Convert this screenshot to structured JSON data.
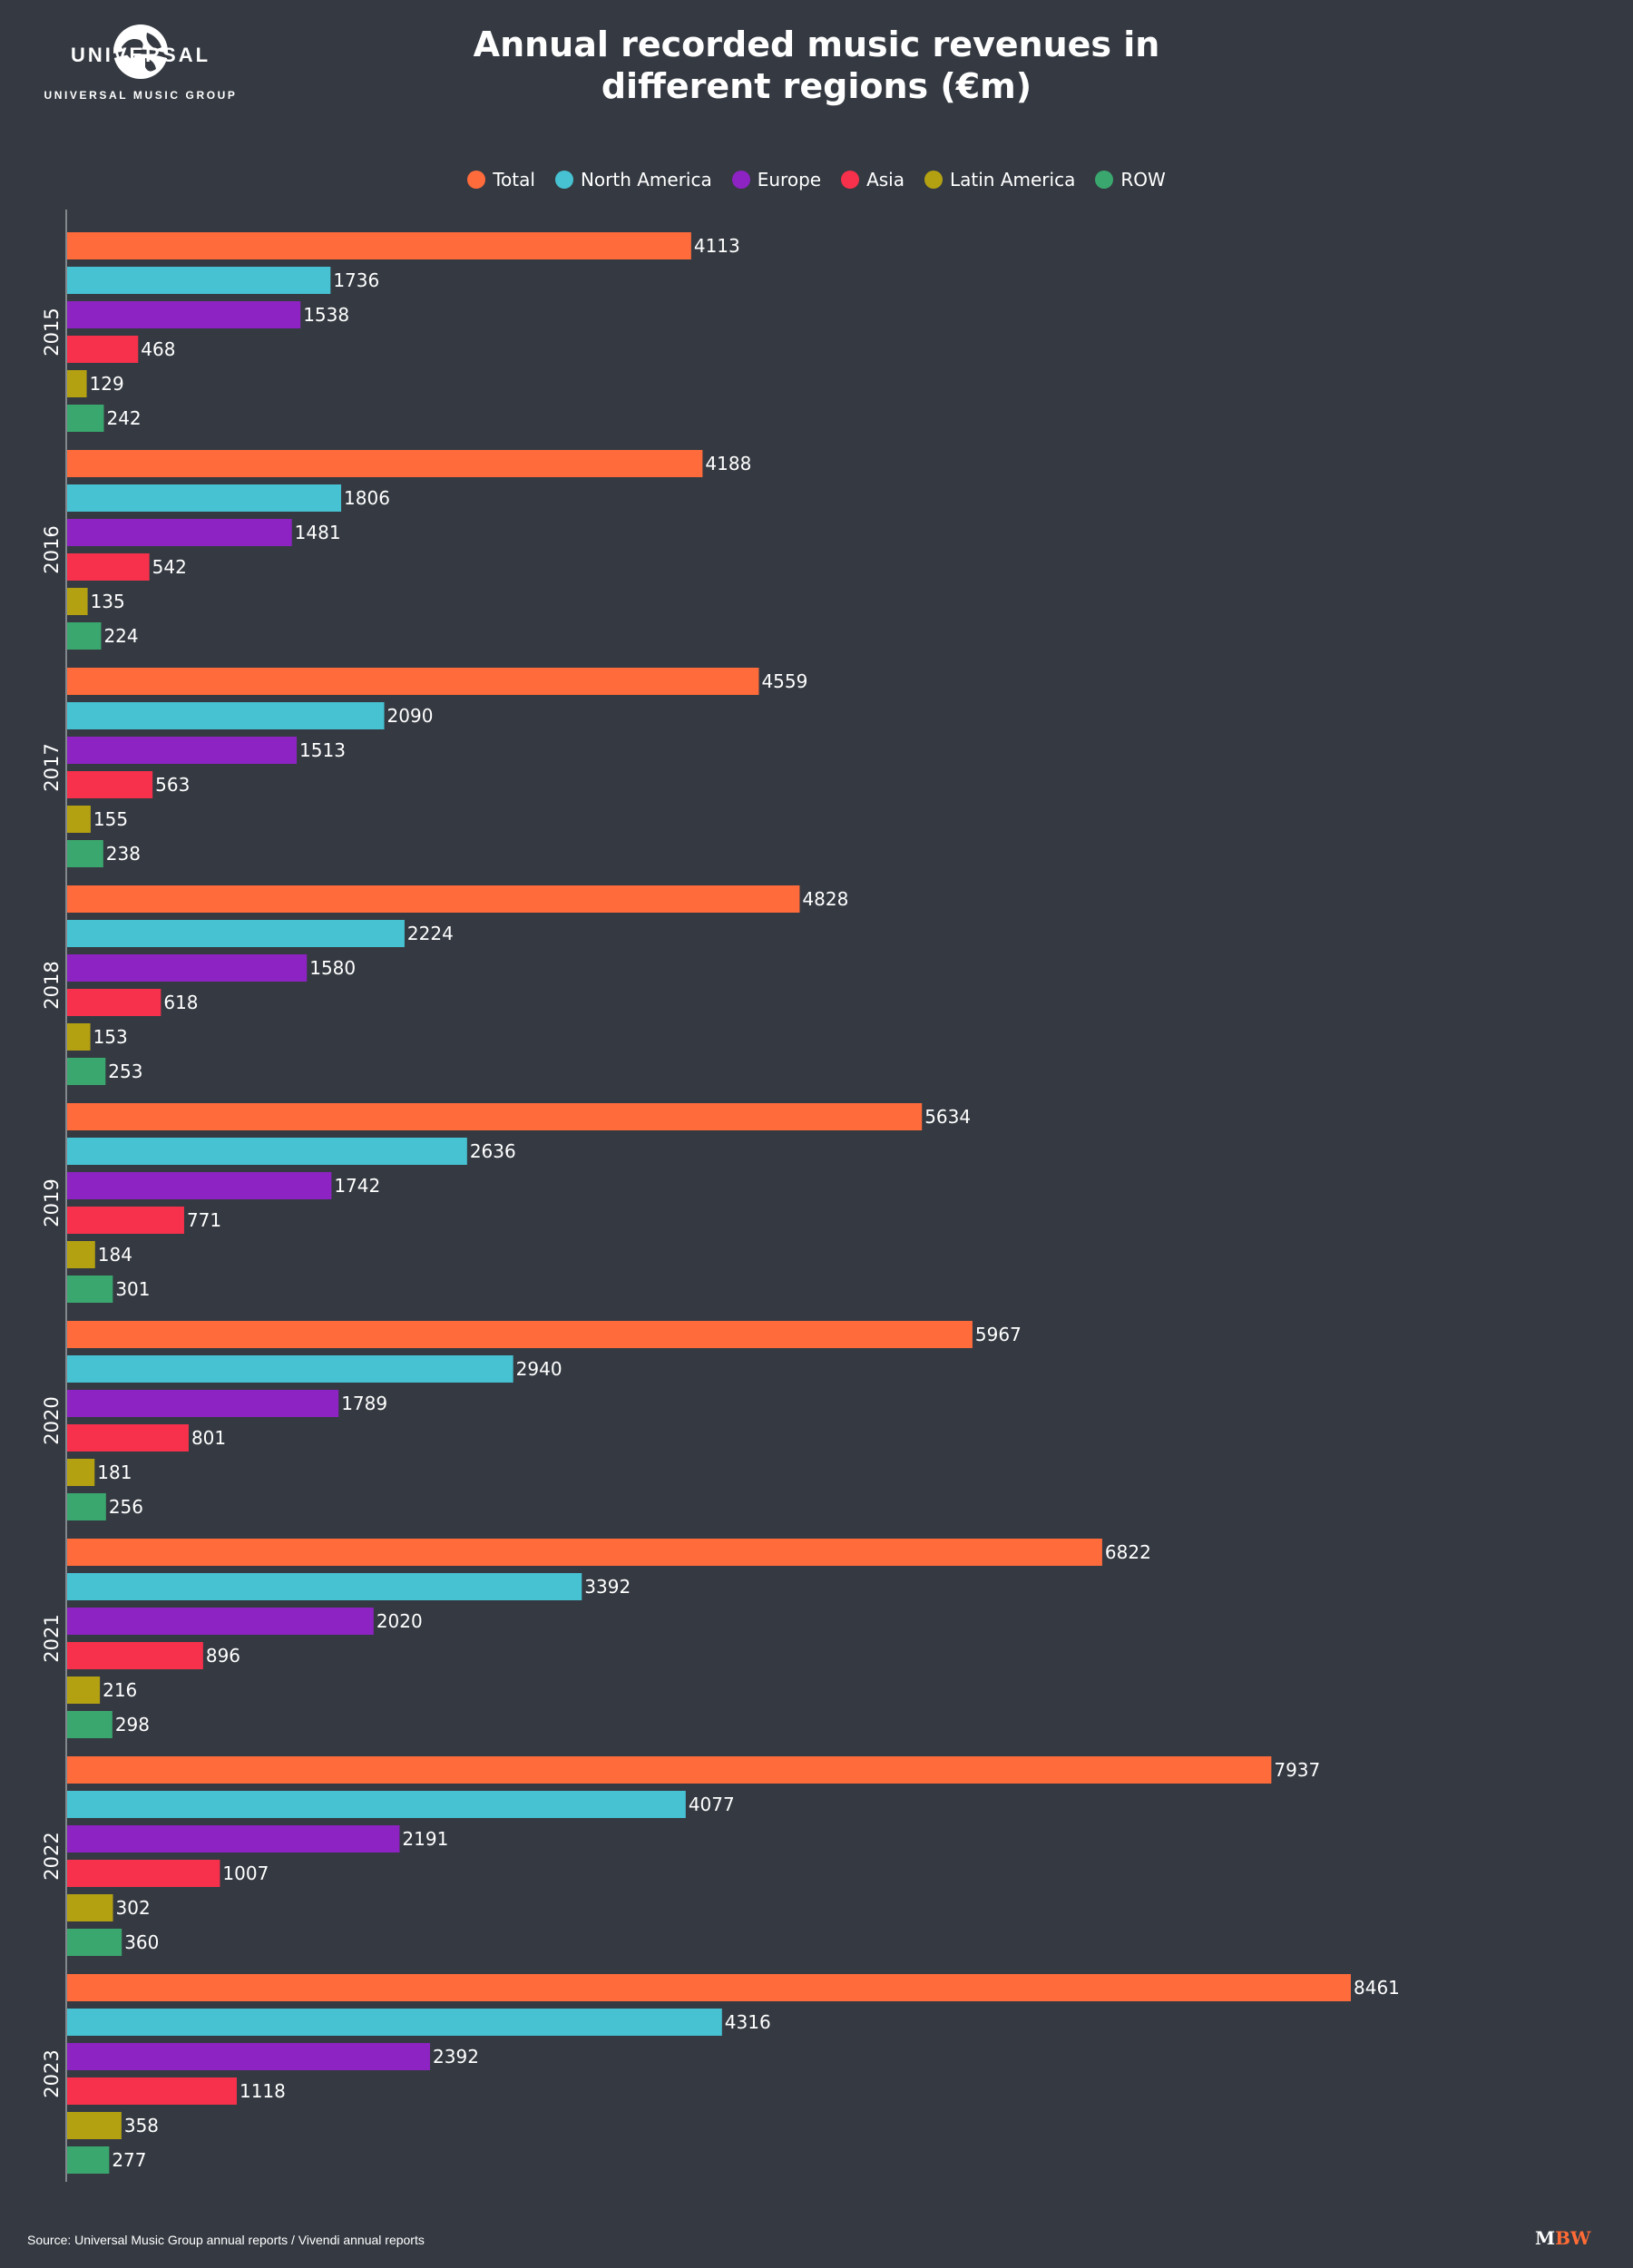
{
  "logo": {
    "wordmark": "UNIVERSAL",
    "group": "UNIVERSAL MUSIC GROUP"
  },
  "footer": {
    "source": "Source: Universal Music Group annual reports / Vivendi annual reports",
    "brand_m": "M",
    "brand_bw": "BW"
  },
  "chart_data": {
    "type": "bar",
    "orientation": "horizontal",
    "title": "Annual recorded music revenues in different regions (€m)",
    "categories": [
      "2015",
      "2016",
      "2017",
      "2018",
      "2019",
      "2020",
      "2021",
      "2022",
      "2023"
    ],
    "legend_position": "top-center",
    "grid": false,
    "xlim": [
      0,
      9500
    ],
    "series": [
      {
        "name": "Total",
        "color": "#ff6b3b",
        "values": [
          4113,
          4188,
          4559,
          4828,
          5634,
          5967,
          6822,
          7937,
          8461
        ]
      },
      {
        "name": "North America",
        "color": "#46c2d2",
        "values": [
          1736,
          1806,
          2090,
          2224,
          2636,
          2940,
          3392,
          4077,
          4316
        ]
      },
      {
        "name": "Europe",
        "color": "#8d23c2",
        "values": [
          1538,
          1481,
          1513,
          1580,
          1742,
          1789,
          2020,
          2191,
          2392
        ]
      },
      {
        "name": "Asia",
        "color": "#f7314b",
        "values": [
          468,
          542,
          563,
          618,
          771,
          801,
          896,
          1007,
          1118
        ]
      },
      {
        "name": "Latin America",
        "color": "#b3a112",
        "values": [
          129,
          135,
          155,
          153,
          184,
          181,
          216,
          302,
          358
        ]
      },
      {
        "name": "ROW",
        "color": "#3aa86e",
        "values": [
          242,
          224,
          238,
          253,
          301,
          256,
          298,
          360,
          277
        ]
      }
    ]
  }
}
